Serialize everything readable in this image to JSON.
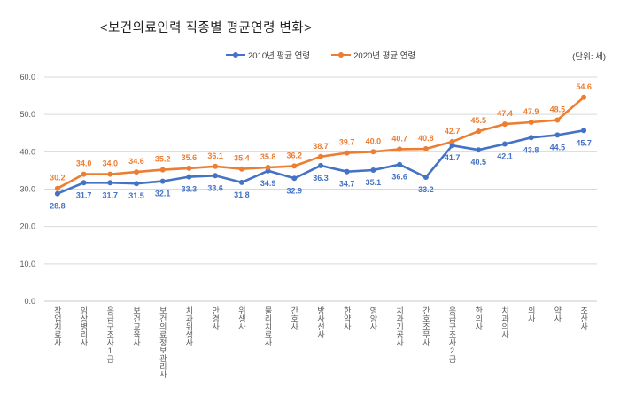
{
  "title": "<보건의료인력 직종별 평균연령 변화>",
  "unit_label": "(단위: 세)",
  "legend": [
    {
      "label": "2010년 평균 연령",
      "color": "#4472C4"
    },
    {
      "label": "2020년 평균 연령",
      "color": "#ED7D31"
    }
  ],
  "colors": {
    "series_2010": "#4472C4",
    "series_2020": "#ED7D31",
    "gridline": "#D9D9D9",
    "axis_line": "#C9C9C9",
    "axis_text": "#595959"
  },
  "chart_data": {
    "type": "line",
    "title": "<보건의료인력 직종별 평균연령 변화>",
    "xlabel": "",
    "ylabel": "",
    "unit": "(단위: 세)",
    "ylim": [
      0,
      60
    ],
    "y_ticks": [
      0,
      10,
      20,
      30,
      40,
      50,
      60
    ],
    "y_tick_labels": [
      "0.0",
      "10.0",
      "20.0",
      "30.0",
      "40.0",
      "50.0",
      "60.0"
    ],
    "grid": true,
    "legend_position": "top",
    "categories": [
      "작업치료사",
      "임상병리사",
      "응급구조사1급",
      "보건교육사",
      "보건의료정보관리사",
      "치과위생사",
      "안경사",
      "위생사",
      "물리치료사",
      "간호사",
      "방사선사",
      "한약사",
      "영양사",
      "치과기공사",
      "간호조무사",
      "응급구조사2급",
      "한의사",
      "치과의사",
      "의사",
      "약사",
      "조산사"
    ],
    "series": [
      {
        "name": "2010년 평균 연령",
        "color": "#4472C4",
        "values": [
          28.8,
          31.7,
          31.7,
          31.5,
          32.1,
          33.3,
          33.6,
          31.8,
          34.9,
          32.9,
          36.3,
          34.7,
          35.1,
          36.6,
          33.2,
          41.7,
          40.5,
          42.1,
          43.8,
          44.5,
          45.7
        ]
      },
      {
        "name": "2020년 평균 연령",
        "color": "#ED7D31",
        "values": [
          30.2,
          34.0,
          34.0,
          34.6,
          35.2,
          35.6,
          36.1,
          35.4,
          35.8,
          36.2,
          38.7,
          39.7,
          40.0,
          40.7,
          40.8,
          42.7,
          45.5,
          47.4,
          47.9,
          48.5,
          54.6
        ]
      }
    ]
  }
}
